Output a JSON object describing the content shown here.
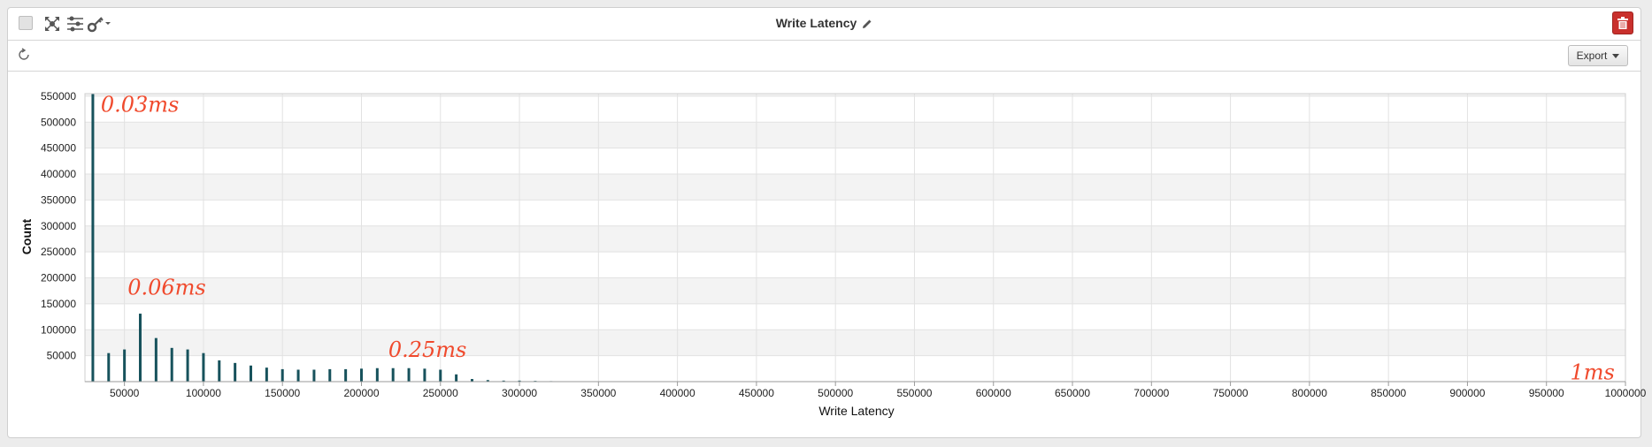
{
  "header": {
    "title": "Write Latency",
    "export_label": "Export"
  },
  "icons": {
    "select": "checkbox-icon",
    "fullscreen": "expand-icon",
    "settings": "sliders-icon",
    "key": "key-icon",
    "edit": "pencil-icon",
    "delete": "trash-icon",
    "refresh": "refresh-icon"
  },
  "colors": {
    "bar": "#17525c",
    "annotation": "#f04a2d",
    "delete_button": "#c9302c"
  },
  "chart_data": {
    "type": "bar",
    "title": "",
    "xlabel": "Write Latency",
    "ylabel": "Count",
    "xlim": [
      25000,
      1000000
    ],
    "ylim": [
      0,
      555000
    ],
    "x_ticks": [
      50000,
      100000,
      150000,
      200000,
      250000,
      300000,
      350000,
      400000,
      450000,
      500000,
      550000,
      600000,
      650000,
      700000,
      750000,
      800000,
      850000,
      900000,
      950000,
      1000000
    ],
    "y_ticks": [
      50000,
      100000,
      150000,
      200000,
      250000,
      300000,
      350000,
      400000,
      450000,
      500000,
      550000
    ],
    "grid": true,
    "x": [
      30000,
      40000,
      50000,
      60000,
      70000,
      80000,
      90000,
      100000,
      110000,
      120000,
      130000,
      140000,
      150000,
      160000,
      170000,
      180000,
      190000,
      200000,
      210000,
      220000,
      230000,
      240000,
      250000,
      260000,
      270000,
      280000,
      290000,
      300000,
      310000,
      320000,
      330000
    ],
    "values": [
      557000,
      55000,
      62000,
      131000,
      84000,
      65000,
      62000,
      55000,
      41000,
      36000,
      31000,
      27000,
      24000,
      23000,
      23000,
      24000,
      24000,
      25000,
      26000,
      26000,
      26000,
      25000,
      23000,
      14000,
      5000,
      3000,
      2000,
      2000,
      1500,
      1000,
      800
    ],
    "annotations": [
      {
        "text": "0.03ms",
        "x": 35000,
        "y": 520000
      },
      {
        "text": "0.06ms",
        "x": 52000,
        "y": 168000
      },
      {
        "text": "0.25ms",
        "x": 217000,
        "y": 48000
      },
      {
        "text": "1ms",
        "x": 965000,
        "y": 4000
      }
    ]
  }
}
